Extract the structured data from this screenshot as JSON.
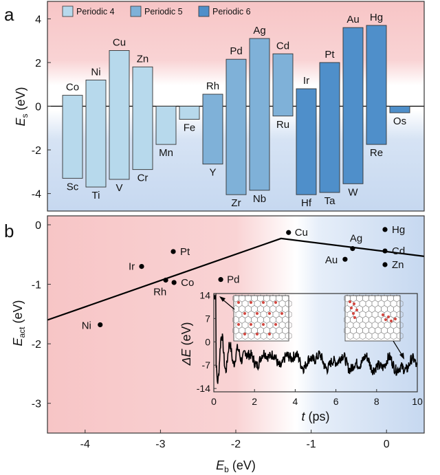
{
  "chart_data": [
    {
      "panel": "a",
      "type": "bar",
      "ylabel": "E",
      "ylabel_sub": "s",
      "ylabel_unit": " (eV)",
      "ylim": [
        -4.8,
        4.8
      ],
      "yticks": [
        4,
        2,
        0,
        -2,
        -4
      ],
      "legend": [
        {
          "name": "Periodic 4",
          "color": "#b7d9ec"
        },
        {
          "name": "Periodic 5",
          "color": "#7fb1d8"
        },
        {
          "name": "Periodic 6",
          "color": "#4f8fca"
        }
      ],
      "bars": [
        {
          "top": "Co",
          "bottom": "Sc",
          "high": 0.5,
          "low": -3.3,
          "group": 0
        },
        {
          "top": "Ni",
          "bottom": "Ti",
          "high": 1.2,
          "low": -3.7,
          "group": 0
        },
        {
          "top": "Cu",
          "bottom": "V",
          "high": 2.55,
          "low": -3.35,
          "group": 0
        },
        {
          "top": "Zn",
          "bottom": "Cr",
          "high": 1.8,
          "low": -2.9,
          "group": 0
        },
        {
          "top": "",
          "bottom": "Mn",
          "high": 0.0,
          "low": -1.75,
          "group": 0
        },
        {
          "top": "",
          "bottom": "Fe",
          "high": 0.0,
          "low": -0.6,
          "group": 0
        },
        {
          "top": "Rh",
          "bottom": "Y",
          "high": 0.55,
          "low": -2.65,
          "group": 1
        },
        {
          "top": "Pd",
          "bottom": "Zr",
          "high": 2.15,
          "low": -4.05,
          "group": 1
        },
        {
          "top": "Ag",
          "bottom": "Nb",
          "high": 3.1,
          "low": -3.85,
          "group": 1
        },
        {
          "top": "Cd",
          "bottom": "Ru",
          "high": 2.4,
          "low": -0.45,
          "group": 1
        },
        {
          "top": "Ir",
          "bottom": "Hf",
          "high": 0.8,
          "low": -4.05,
          "group": 2
        },
        {
          "top": "Pt",
          "bottom": "Ta",
          "high": 2.0,
          "low": -3.95,
          "group": 2
        },
        {
          "top": "Au",
          "bottom": "W",
          "high": 3.6,
          "low": -3.55,
          "group": 2
        },
        {
          "top": "Hg",
          "bottom": "Re",
          "high": 3.7,
          "low": -1.75,
          "group": 2
        },
        {
          "top": "",
          "bottom": "Os",
          "high": 0.0,
          "low": -0.3,
          "group": 2
        }
      ]
    },
    {
      "panel": "b",
      "type": "scatter",
      "xlabel": "E",
      "xlabel_sub": "b",
      "xlabel_unit": " (eV)",
      "ylabel": "E",
      "ylabel_sub": "act",
      "ylabel_unit": " (eV)",
      "xlim": [
        -4.5,
        0.5
      ],
      "ylim": [
        -3.5,
        0.15
      ],
      "xticks": [
        -4,
        -3,
        -2,
        -1,
        0
      ],
      "yticks": [
        0,
        -1,
        -2,
        -3
      ],
      "points": [
        {
          "label": "Ni",
          "x": -3.8,
          "y": -1.68
        },
        {
          "label": "Ir",
          "x": -3.25,
          "y": -0.7
        },
        {
          "label": "Pt",
          "x": -2.83,
          "y": -0.45
        },
        {
          "label": "Rh",
          "x": -2.93,
          "y": -0.93
        },
        {
          "label": "Co",
          "x": -2.82,
          "y": -0.97
        },
        {
          "label": "Pd",
          "x": -2.2,
          "y": -0.92
        },
        {
          "label": "Cu",
          "x": -1.3,
          "y": -0.13
        },
        {
          "label": "Ag",
          "x": -0.45,
          "y": -0.4
        },
        {
          "label": "Au",
          "x": -0.55,
          "y": -0.58
        },
        {
          "label": "Hg",
          "x": -0.02,
          "y": -0.08
        },
        {
          "label": "Cd",
          "x": -0.02,
          "y": -0.44
        },
        {
          "label": "Zn",
          "x": -0.02,
          "y": -0.67
        }
      ],
      "volcano_line": [
        [
          -4.5,
          -1.6
        ],
        [
          -1.4,
          -0.23
        ],
        [
          0.5,
          -0.53
        ]
      ]
    },
    {
      "panel": "inset",
      "type": "line",
      "xlabel": "t",
      "xlabel_unit": " (ps)",
      "ylabel": "ΔE",
      "ylabel_unit": " (eV)",
      "xlim": [
        0,
        10
      ],
      "ylim": [
        -15,
        14.5
      ],
      "xticks": [
        0,
        2,
        4,
        6,
        8,
        10
      ],
      "yticks": [
        14,
        7,
        0,
        -7,
        -14
      ]
    }
  ]
}
